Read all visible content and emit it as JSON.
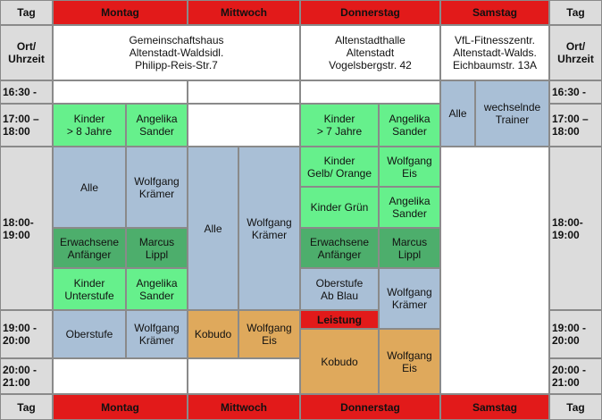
{
  "header": {
    "corner_left": "Tag",
    "days": [
      "Montag",
      "Mittwoch",
      "Donnerstag",
      "Samstag"
    ],
    "corner_right": "Tag"
  },
  "location_row": {
    "label_left": "Ort/\nUhrzeit",
    "locations": [
      "Gemeinschaftshaus\nAltenstadt-Waldsidl.\nPhilipp-Reis-Str.7",
      "Altenstadthalle\nAltenstadt\nVogelsbergstr. 42",
      "VfL-Fitnesszentr.\nAltenstadt-Walds.\nEichbaumstr. 13A"
    ],
    "label_right": "Ort/\nUhrzeit"
  },
  "times_left": [
    "16:30 -",
    "17:00 –\n18:00",
    "18:00-\n19:00",
    "19:00 -\n20:00",
    "20:00 -\n21:00"
  ],
  "times_right": [
    "16:30 -",
    "17:00 –\n18:00",
    "18:00-\n19:00",
    "19:00 -\n20:00",
    "20:00 -\n21:00"
  ],
  "entries": [
    "Kinder\n> 8 Jahre",
    "Angelika\nSander",
    "Alle",
    "Wolfgang\nKrämer",
    "Erwachsene\nAnfänger",
    "Marcus\nLippl",
    "Kinder\nUnterstufe",
    "Angelika\nSander",
    "Oberstufe",
    "Wolfgang\nKrämer",
    "Alle",
    "Wolfgang\nKrämer",
    "Kobudo",
    "Wolfgang\nEis",
    "Kinder\n> 7 Jahre",
    "Angelika\nSander",
    "Kinder\nGelb/ Orange",
    "Wolfgang\nEis",
    "Kinder   Grün",
    "Angelika\nSander",
    "Erwachsene\nAnfänger",
    "Marcus\nLippl",
    "Oberstufe\nAb Blau",
    "Wolfgang\nKrämer",
    "Leistung",
    "Kobudo",
    "Wolfgang\nEis",
    "Alle",
    "wechselnde\nTrainer"
  ],
  "footer": {
    "corner_left": "Tag",
    "days": [
      "Montag",
      "Mittwoch",
      "Donnerstag",
      "Samstag"
    ],
    "corner_right": "Tag"
  }
}
